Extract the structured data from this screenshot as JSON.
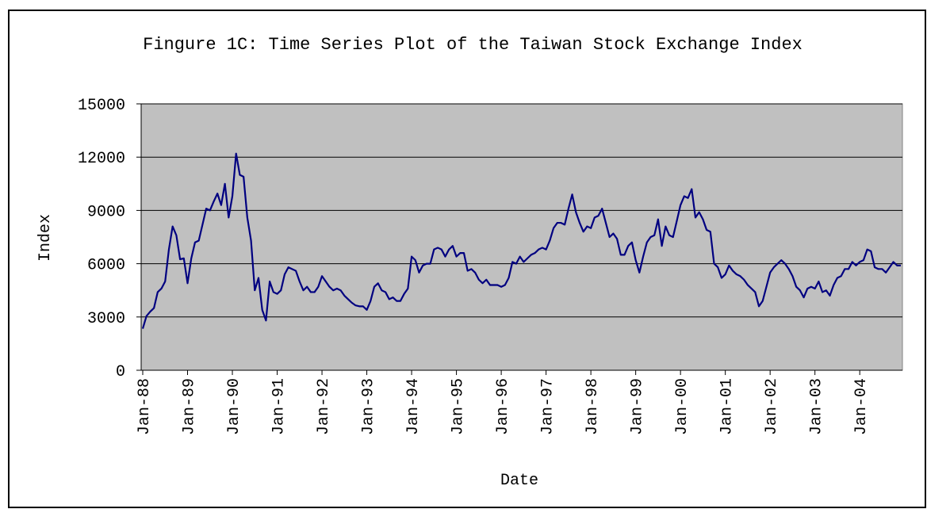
{
  "chart_data": {
    "type": "line",
    "title": "Fingure 1C: Time Series Plot of the Taiwan Stock Exchange Index",
    "xlabel": "Date",
    "ylabel": "Index",
    "categories": [
      "Jan-88",
      null,
      null,
      null,
      null,
      null,
      null,
      null,
      null,
      null,
      null,
      null,
      "Jan-89",
      null,
      null,
      null,
      null,
      null,
      null,
      null,
      null,
      null,
      null,
      null,
      "Jan-90",
      null,
      null,
      null,
      null,
      null,
      null,
      null,
      null,
      null,
      null,
      null,
      "Jan-91",
      null,
      null,
      null,
      null,
      null,
      null,
      null,
      null,
      null,
      null,
      null,
      "Jan-92",
      null,
      null,
      null,
      null,
      null,
      null,
      null,
      null,
      null,
      null,
      null,
      "Jan-93",
      null,
      null,
      null,
      null,
      null,
      null,
      null,
      null,
      null,
      null,
      null,
      "Jan-94",
      null,
      null,
      null,
      null,
      null,
      null,
      null,
      null,
      null,
      null,
      null,
      "Jan-95",
      null,
      null,
      null,
      null,
      null,
      null,
      null,
      null,
      null,
      null,
      null,
      "Jan-96",
      null,
      null,
      null,
      null,
      null,
      null,
      null,
      null,
      null,
      null,
      null,
      "Jan-97",
      null,
      null,
      null,
      null,
      null,
      null,
      null,
      null,
      null,
      null,
      null,
      "Jan-98",
      null,
      null,
      null,
      null,
      null,
      null,
      null,
      null,
      null,
      null,
      null,
      "Jan-99",
      null,
      null,
      null,
      null,
      null,
      null,
      null,
      null,
      null,
      null,
      null,
      "Jan-00",
      null,
      null,
      null,
      null,
      null,
      null,
      null,
      null,
      null,
      null,
      null,
      "Jan-01",
      null,
      null,
      null,
      null,
      null,
      null,
      null,
      null,
      null,
      null,
      null,
      "Jan-02",
      null,
      null,
      null,
      null,
      null,
      null,
      null,
      null,
      null,
      null,
      null,
      "Jan-03",
      null,
      null,
      null,
      null,
      null,
      null,
      null,
      null,
      null,
      null,
      null,
      "Jan-04",
      null,
      null,
      null,
      null,
      null,
      null,
      null,
      null,
      null,
      null,
      null
    ],
    "series": [
      {
        "name": "Index",
        "color": "#000080",
        "values": [
          2340,
          3050,
          3300,
          3500,
          4400,
          4600,
          5000,
          6800,
          8100,
          7600,
          6250,
          6300,
          4900,
          6300,
          7200,
          7300,
          8200,
          9100,
          9000,
          9500,
          9950,
          9300,
          10500,
          8600,
          9800,
          12200,
          11000,
          10900,
          8600,
          7300,
          4500,
          5200,
          3400,
          2800,
          5000,
          4400,
          4300,
          4500,
          5400,
          5800,
          5700,
          5600,
          5000,
          4500,
          4700,
          4400,
          4400,
          4700,
          5300,
          5000,
          4700,
          4500,
          4600,
          4500,
          4200,
          4000,
          3800,
          3650,
          3600,
          3600,
          3400,
          3900,
          4700,
          4900,
          4500,
          4400,
          4000,
          4100,
          3900,
          3900,
          4300,
          4600,
          6400,
          6200,
          5500,
          5900,
          6000,
          6000,
          6800,
          6900,
          6800,
          6400,
          6800,
          7000,
          6400,
          6600,
          6600,
          5600,
          5700,
          5500,
          5100,
          4900,
          5100,
          4800,
          4800,
          4800,
          4700,
          4800,
          5200,
          6100,
          6000,
          6400,
          6100,
          6300,
          6500,
          6600,
          6800,
          6900,
          6800,
          7300,
          8000,
          8300,
          8300,
          8200,
          9100,
          9900,
          8900,
          8300,
          7800,
          8100,
          8000,
          8600,
          8700,
          9100,
          8300,
          7500,
          7700,
          7400,
          6500,
          6500,
          7000,
          7200,
          6200,
          5500,
          6400,
          7200,
          7500,
          7600,
          8500,
          7000,
          8100,
          7600,
          7500,
          8400,
          9300,
          9800,
          9700,
          10200,
          8600,
          8900,
          8500,
          7900,
          7800,
          6000,
          5800,
          5200,
          5400,
          5900,
          5600,
          5400,
          5300,
          5100,
          4800,
          4600,
          4400,
          3600,
          3900,
          4700,
          5500,
          5800,
          6000,
          6200,
          6000,
          5700,
          5300,
          4700,
          4500,
          4100,
          4600,
          4700,
          4600,
          5000,
          4400,
          4500,
          4200,
          4800,
          5200,
          5300,
          5700,
          5700,
          6100,
          5900,
          6100,
          6200,
          6800,
          6700,
          5800,
          5700,
          5700,
          5500,
          5800,
          6100,
          5900,
          5900
        ]
      }
    ],
    "ylim": [
      0,
      15000
    ],
    "yticks": [
      0,
      3000,
      6000,
      9000,
      12000,
      15000
    ],
    "grid": true,
    "plot_background": "#c0c0c0"
  }
}
